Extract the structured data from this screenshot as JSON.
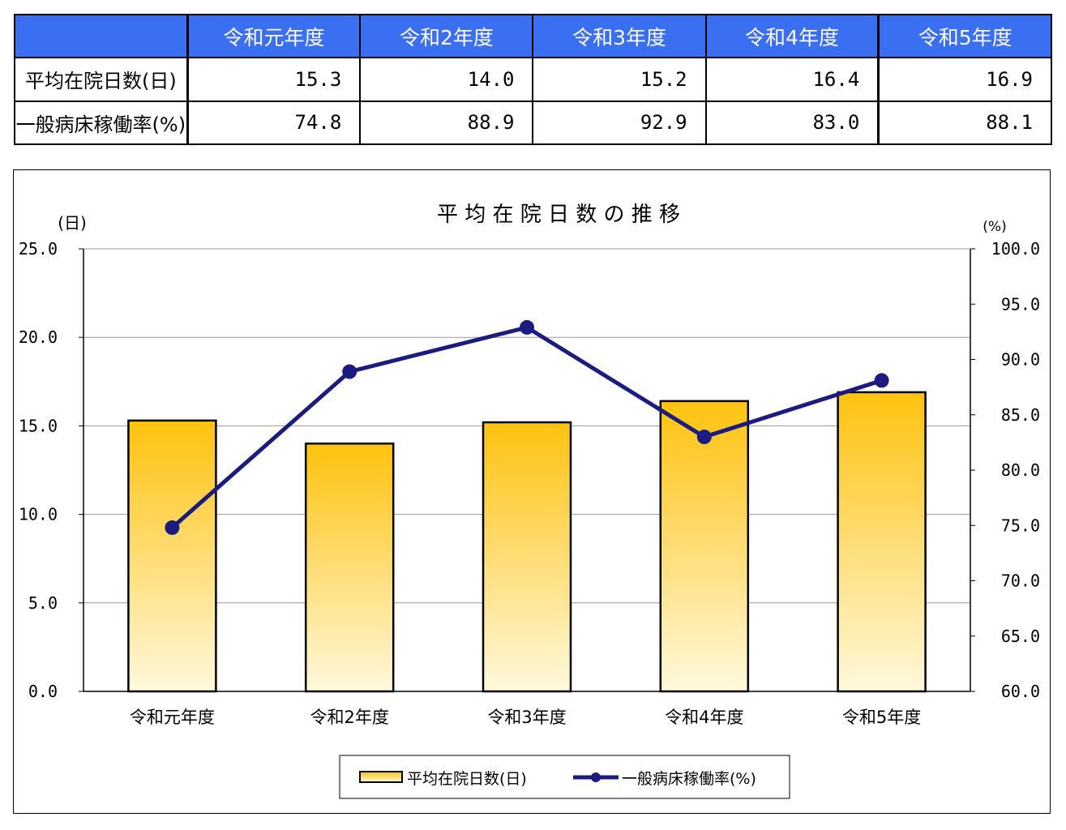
{
  "table": {
    "header": [
      "",
      "令和元年度",
      "令和2年度",
      "令和3年度",
      "令和4年度",
      "令和5年度"
    ],
    "rows": [
      {
        "label": "平均在院日数(日)",
        "values": [
          "15.3",
          "14.0",
          "15.2",
          "16.4",
          "16.9"
        ]
      },
      {
        "label": "一般病床稼働率(%)",
        "values": [
          "74.8",
          "88.9",
          "92.9",
          "83.0",
          "88.1"
        ]
      }
    ]
  },
  "chart_data": {
    "type": "bar",
    "title": "平 均 在 院 日 数 の 推 移",
    "categories": [
      "令和元年度",
      "令和2年度",
      "令和3年度",
      "令和4年度",
      "令和5年度"
    ],
    "series": [
      {
        "name": "平均在院日数(日)",
        "type": "bar",
        "axis": "left",
        "values": [
          15.3,
          14.0,
          15.2,
          16.4,
          16.9
        ]
      },
      {
        "name": "一般病床稼働率(%)",
        "type": "line",
        "axis": "right",
        "values": [
          74.8,
          88.9,
          92.9,
          83.0,
          88.1
        ]
      }
    ],
    "y_left": {
      "label": "(日)",
      "ylim": [
        0,
        25
      ],
      "ticks": [
        "0.0",
        "5.0",
        "10.0",
        "15.0",
        "20.0",
        "25.0"
      ]
    },
    "y_right": {
      "label": "(%)",
      "ylim": [
        60,
        100
      ],
      "ticks": [
        "60.0",
        "65.0",
        "70.0",
        "75.0",
        "80.0",
        "85.0",
        "90.0",
        "95.0",
        "100.0"
      ]
    },
    "grid": true,
    "legend": "bottom",
    "colors": {
      "bar_top": "#ffc20e",
      "bar_bottom": "#fff8dc",
      "line": "#1c1c80",
      "grid": "#999999",
      "header_bg": "#3b6ff2"
    }
  }
}
